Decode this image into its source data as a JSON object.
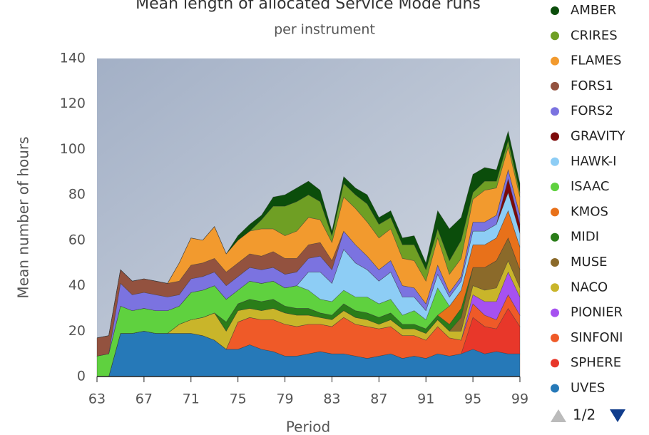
{
  "chart_data": {
    "type": "stacked-area",
    "title": "Mean length of allocated Service Mode runs",
    "subtitle": "per instrument",
    "x_label": "Period",
    "y_label": "Mean number of hours",
    "x": [
      63,
      64,
      65,
      66,
      67,
      68,
      69,
      70,
      71,
      72,
      73,
      74,
      75,
      76,
      77,
      78,
      79,
      80,
      81,
      82,
      83,
      84,
      85,
      86,
      87,
      88,
      89,
      90,
      91,
      92,
      93,
      94,
      95,
      96,
      97,
      98,
      99
    ],
    "xlim": [
      63,
      99
    ],
    "xticks": [
      63,
      67,
      71,
      75,
      79,
      83,
      87,
      91,
      95,
      99
    ],
    "ylim": [
      0,
      140
    ],
    "yticks": [
      0,
      20,
      40,
      60,
      80,
      100,
      120,
      140
    ],
    "legend_page": "1/2",
    "series": [
      {
        "name": "AMBER",
        "color": "#0b4d0b",
        "values": [
          0,
          0,
          0,
          0,
          0,
          0,
          0,
          0,
          0,
          0,
          0,
          0,
          2,
          3,
          2,
          4,
          5,
          6,
          6,
          5,
          2,
          3,
          3,
          4,
          3,
          3,
          3,
          4,
          3,
          8,
          14,
          10,
          8,
          6,
          5,
          4,
          4
        ]
      },
      {
        "name": "CRIRES",
        "color": "#6f9f24",
        "values": [
          0,
          0,
          0,
          0,
          0,
          0,
          0,
          0,
          0,
          0,
          0,
          0,
          0,
          0,
          4,
          10,
          13,
          13,
          10,
          8,
          3,
          6,
          6,
          8,
          6,
          5,
          6,
          7,
          5,
          4,
          6,
          8,
          3,
          4,
          3,
          3,
          2
        ]
      },
      {
        "name": "FLAMES",
        "color": "#f29a2e",
        "values": [
          0,
          0,
          0,
          0,
          0,
          0,
          0,
          8,
          12,
          10,
          14,
          8,
          10,
          10,
          12,
          10,
          10,
          12,
          12,
          10,
          8,
          15,
          16,
          15,
          14,
          14,
          12,
          12,
          10,
          12,
          8,
          8,
          10,
          14,
          12,
          10,
          8
        ]
      },
      {
        "name": "FORS1",
        "color": "#93523f",
        "values": [
          8,
          8,
          6,
          6,
          6,
          6,
          6,
          6,
          6,
          6,
          6,
          6,
          6,
          6,
          6,
          7,
          7,
          6,
          6,
          6,
          4,
          0,
          0,
          0,
          0,
          0,
          0,
          0,
          0,
          0,
          0,
          0,
          0,
          0,
          0,
          0,
          0
        ]
      },
      {
        "name": "FORS2",
        "color": "#7b73e0",
        "values": [
          0,
          0,
          10,
          7,
          7,
          7,
          6,
          5,
          6,
          6,
          6,
          6,
          6,
          6,
          6,
          6,
          6,
          6,
          6,
          7,
          6,
          8,
          8,
          6,
          5,
          5,
          5,
          4,
          3,
          4,
          2,
          2,
          4,
          4,
          4,
          4,
          4
        ]
      },
      {
        "name": "GRAVITY",
        "color": "#7d0a0a",
        "values": [
          0,
          0,
          0,
          0,
          0,
          0,
          0,
          0,
          0,
          0,
          0,
          0,
          0,
          0,
          0,
          0,
          0,
          0,
          0,
          0,
          0,
          0,
          0,
          0,
          0,
          0,
          0,
          0,
          0,
          0,
          0,
          0,
          0,
          0,
          0,
          6,
          4
        ]
      },
      {
        "name": "HAWK-I",
        "color": "#8dcdf5",
        "values": [
          0,
          0,
          0,
          0,
          0,
          0,
          0,
          0,
          0,
          0,
          0,
          0,
          0,
          0,
          0,
          0,
          0,
          0,
          8,
          12,
          8,
          18,
          15,
          12,
          10,
          12,
          8,
          6,
          4,
          6,
          4,
          4,
          6,
          6,
          6,
          8,
          6
        ]
      },
      {
        "name": "ISAAC",
        "color": "#5fd13f",
        "values": [
          9,
          10,
          12,
          10,
          10,
          10,
          10,
          8,
          12,
          12,
          12,
          10,
          6,
          8,
          8,
          8,
          8,
          10,
          8,
          6,
          6,
          6,
          6,
          7,
          6,
          6,
          4,
          6,
          4,
          12,
          0,
          0,
          0,
          0,
          0,
          0,
          0
        ]
      },
      {
        "name": "KMOS",
        "color": "#e8711a",
        "values": [
          0,
          0,
          0,
          0,
          0,
          0,
          0,
          0,
          0,
          0,
          0,
          0,
          0,
          0,
          0,
          0,
          0,
          0,
          0,
          0,
          0,
          0,
          0,
          0,
          0,
          0,
          0,
          0,
          0,
          0,
          8,
          8,
          10,
          10,
          10,
          12,
          10
        ]
      },
      {
        "name": "MIDI",
        "color": "#2a7d19",
        "values": [
          0,
          0,
          0,
          0,
          0,
          0,
          0,
          0,
          0,
          0,
          0,
          4,
          3,
          4,
          4,
          4,
          3,
          3,
          3,
          2,
          2,
          3,
          3,
          3,
          3,
          3,
          2,
          2,
          2,
          2,
          3,
          4,
          0,
          0,
          0,
          0,
          0
        ]
      },
      {
        "name": "MUSE",
        "color": "#8b6a2a",
        "values": [
          0,
          0,
          0,
          0,
          0,
          0,
          0,
          0,
          0,
          0,
          0,
          0,
          0,
          0,
          0,
          0,
          0,
          0,
          0,
          0,
          0,
          0,
          0,
          0,
          0,
          0,
          0,
          0,
          0,
          0,
          0,
          6,
          8,
          10,
          12,
          10,
          8
        ]
      },
      {
        "name": "NACO",
        "color": "#c9b52a",
        "values": [
          0,
          0,
          0,
          0,
          0,
          0,
          0,
          4,
          6,
          8,
          12,
          8,
          5,
          4,
          4,
          5,
          5,
          5,
          4,
          3,
          3,
          3,
          3,
          3,
          2,
          3,
          3,
          3,
          3,
          3,
          3,
          4,
          4,
          5,
          6,
          5,
          4
        ]
      },
      {
        "name": "PIONIER",
        "color": "#a651f0",
        "values": [
          0,
          0,
          0,
          0,
          0,
          0,
          0,
          0,
          0,
          0,
          0,
          0,
          0,
          0,
          0,
          0,
          0,
          0,
          0,
          0,
          0,
          0,
          0,
          0,
          0,
          0,
          0,
          0,
          0,
          0,
          0,
          0,
          4,
          6,
          8,
          10,
          8
        ]
      },
      {
        "name": "SINFONI",
        "color": "#ef5a28",
        "values": [
          0,
          0,
          0,
          0,
          0,
          0,
          0,
          0,
          0,
          0,
          0,
          0,
          12,
          12,
          13,
          14,
          14,
          13,
          13,
          12,
          12,
          16,
          14,
          14,
          12,
          12,
          10,
          9,
          8,
          12,
          8,
          6,
          6,
          5,
          4,
          6,
          5
        ]
      },
      {
        "name": "SPHERE",
        "color": "#e8372a",
        "values": [
          0,
          0,
          0,
          0,
          0,
          0,
          0,
          0,
          0,
          0,
          0,
          0,
          0,
          0,
          0,
          0,
          0,
          0,
          0,
          0,
          0,
          0,
          0,
          0,
          0,
          0,
          0,
          0,
          0,
          0,
          0,
          0,
          14,
          12,
          10,
          20,
          12
        ]
      },
      {
        "name": "UVES",
        "color": "#2679b8",
        "values": [
          0,
          0,
          19,
          19,
          20,
          19,
          19,
          19,
          19,
          18,
          16,
          12,
          12,
          14,
          12,
          11,
          9,
          9,
          10,
          11,
          10,
          10,
          9,
          8,
          9,
          10,
          8,
          9,
          8,
          10,
          9,
          10,
          12,
          10,
          11,
          10,
          10
        ]
      }
    ]
  }
}
